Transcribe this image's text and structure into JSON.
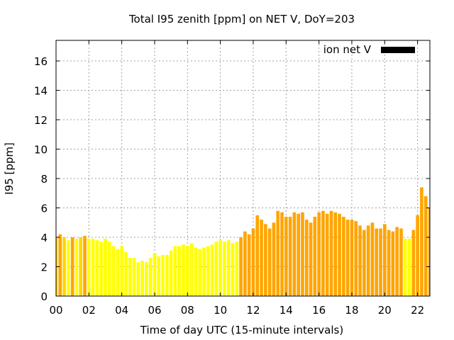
{
  "chart_data": {
    "type": "bar",
    "title": "Total I95 zenith [ppm] on NET V, DoY=203",
    "xlabel": "Time of day UTC (15-minute intervals)",
    "ylabel": "I95 [ppm]",
    "xlim": [
      0,
      22.75
    ],
    "ylim": [
      0,
      17.4
    ],
    "x_ticks": [
      "00",
      "02",
      "04",
      "06",
      "08",
      "10",
      "12",
      "14",
      "16",
      "18",
      "20",
      "22"
    ],
    "y_ticks": [
      "0",
      "2",
      "4",
      "6",
      "8",
      "10",
      "12",
      "14",
      "16"
    ],
    "grid": true,
    "legend_position": "top-right",
    "bar_width_hours": 0.2,
    "colors": {
      "yellow": "#ffff00",
      "gold": "#ffd700",
      "orange": "#ffa500",
      "legend": "#000000"
    },
    "series": [
      {
        "name": "ion net V",
        "x": [
          0.0,
          0.25,
          0.5,
          0.75,
          1.0,
          1.25,
          1.5,
          1.75,
          2.0,
          2.25,
          2.5,
          2.75,
          3.0,
          3.25,
          3.5,
          3.75,
          4.0,
          4.25,
          4.5,
          4.75,
          5.0,
          5.25,
          5.5,
          5.75,
          6.0,
          6.25,
          6.5,
          6.75,
          7.0,
          7.25,
          7.5,
          7.75,
          8.0,
          8.25,
          8.5,
          8.75,
          9.0,
          9.25,
          9.5,
          9.75,
          10.0,
          10.25,
          10.5,
          10.75,
          11.0,
          11.25,
          11.5,
          11.75,
          12.0,
          12.25,
          12.5,
          12.75,
          13.0,
          13.25,
          13.5,
          13.75,
          14.0,
          14.25,
          14.5,
          14.75,
          15.0,
          15.25,
          15.5,
          15.75,
          16.0,
          16.25,
          16.5,
          16.75,
          17.0,
          17.25,
          17.5,
          17.75,
          18.0,
          18.25,
          18.5,
          18.75,
          19.0,
          19.25,
          19.5,
          19.75,
          20.0,
          20.25,
          20.5,
          20.75,
          21.0,
          21.25,
          21.5,
          21.75,
          22.0,
          22.25,
          22.5,
          22.75
        ],
        "values": [
          4.0,
          4.2,
          4.0,
          3.8,
          4.0,
          3.9,
          4.0,
          4.1,
          3.9,
          3.9,
          3.8,
          3.7,
          3.9,
          3.7,
          3.4,
          3.2,
          3.4,
          3.0,
          2.6,
          2.6,
          2.3,
          2.4,
          2.3,
          2.6,
          2.9,
          2.7,
          2.8,
          2.8,
          3.1,
          3.4,
          3.4,
          3.5,
          3.4,
          3.6,
          3.3,
          3.2,
          3.3,
          3.4,
          3.5,
          3.7,
          3.8,
          3.7,
          3.8,
          3.6,
          3.7,
          4.0,
          4.4,
          4.2,
          4.6,
          5.5,
          5.2,
          4.9,
          4.6,
          5.0,
          5.8,
          5.7,
          5.4,
          5.4,
          5.7,
          5.6,
          5.7,
          5.2,
          5.0,
          5.4,
          5.7,
          5.8,
          5.6,
          5.8,
          5.7,
          5.6,
          5.4,
          5.2,
          5.2,
          5.1,
          4.8,
          4.5,
          4.8,
          5.0,
          4.6,
          4.6,
          4.9,
          4.5,
          4.4,
          4.7,
          4.6,
          3.9,
          3.9,
          4.5,
          5.5,
          7.4,
          6.8,
          6.0
        ],
        "colors": [
          "gold",
          "orange",
          "gold",
          "yellow",
          "orange",
          "yellow",
          "gold",
          "orange",
          "yellow",
          "yellow",
          "yellow",
          "yellow",
          "yellow",
          "yellow",
          "yellow",
          "yellow",
          "yellow",
          "yellow",
          "yellow",
          "yellow",
          "yellow",
          "yellow",
          "yellow",
          "yellow",
          "yellow",
          "yellow",
          "yellow",
          "yellow",
          "yellow",
          "yellow",
          "yellow",
          "yellow",
          "yellow",
          "yellow",
          "yellow",
          "yellow",
          "yellow",
          "yellow",
          "yellow",
          "yellow",
          "yellow",
          "yellow",
          "yellow",
          "yellow",
          "yellow",
          "orange",
          "orange",
          "orange",
          "orange",
          "orange",
          "orange",
          "orange",
          "orange",
          "orange",
          "orange",
          "orange",
          "orange",
          "orange",
          "orange",
          "orange",
          "orange",
          "orange",
          "orange",
          "orange",
          "orange",
          "orange",
          "orange",
          "orange",
          "orange",
          "orange",
          "orange",
          "orange",
          "orange",
          "orange",
          "orange",
          "orange",
          "orange",
          "orange",
          "orange",
          "orange",
          "orange",
          "orange",
          "orange",
          "orange",
          "orange",
          "yellow",
          "yellow",
          "orange",
          "orange",
          "orange",
          "orange",
          "orange"
        ]
      }
    ]
  }
}
